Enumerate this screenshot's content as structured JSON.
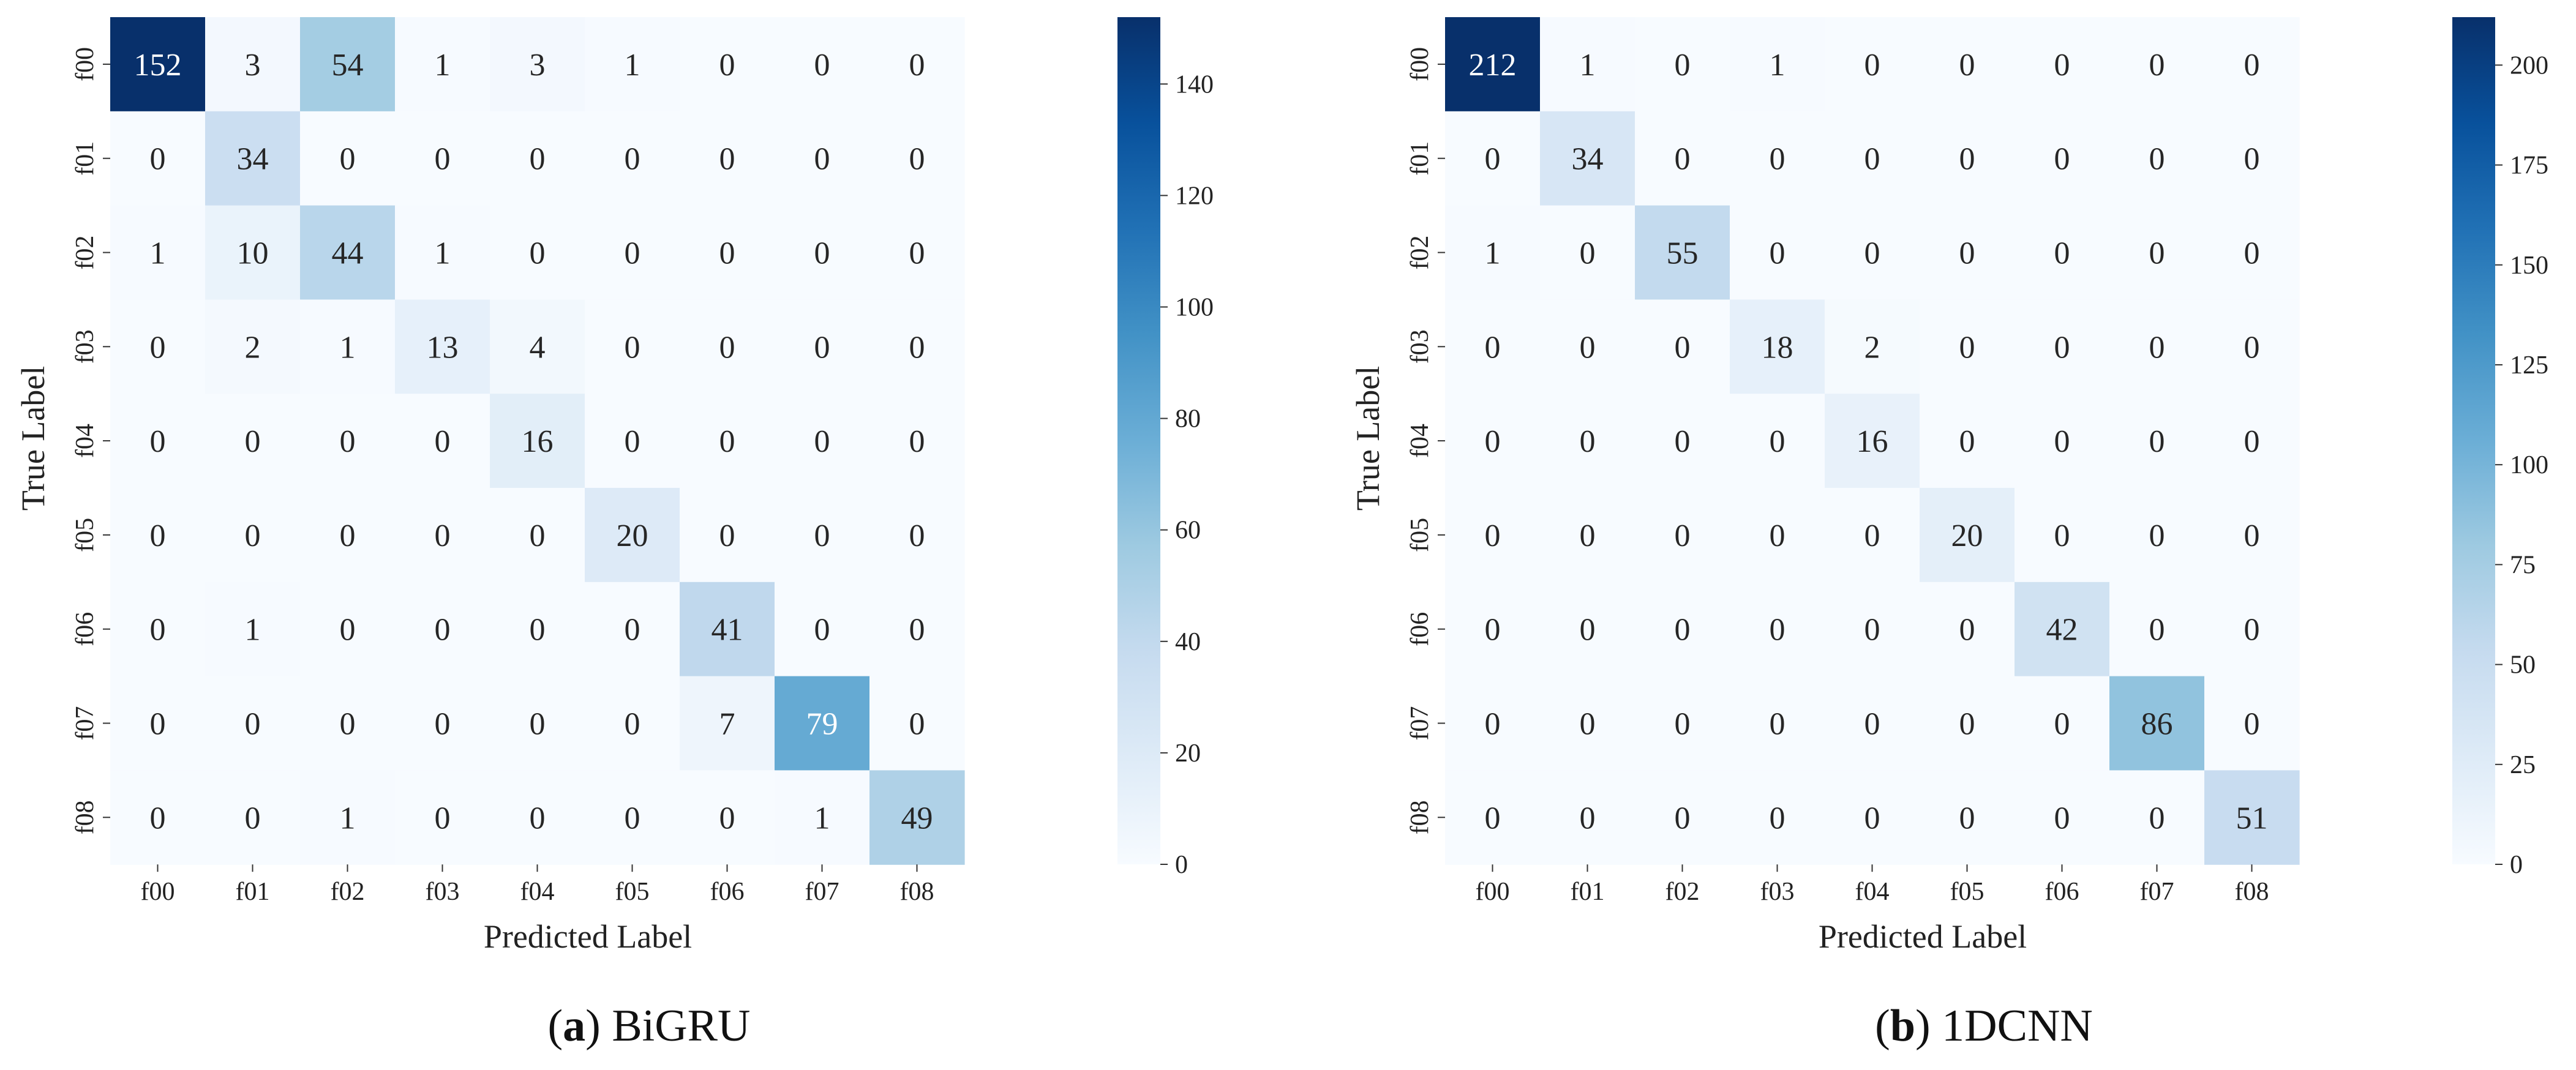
{
  "chart_data": [
    {
      "type": "heatmap",
      "caption_letter": "a",
      "caption_text": "BiGRU",
      "x_categories": [
        "f00",
        "f01",
        "f02",
        "f03",
        "f04",
        "f05",
        "f06",
        "f07",
        "f08"
      ],
      "y_categories": [
        "f00",
        "f01",
        "f02",
        "f03",
        "f04",
        "f05",
        "f06",
        "f07",
        "f08"
      ],
      "xlabel": "Predicted Label",
      "ylabel": "True Label",
      "values": [
        [
          152,
          3,
          54,
          1,
          3,
          1,
          0,
          0,
          0
        ],
        [
          0,
          34,
          0,
          0,
          0,
          0,
          0,
          0,
          0
        ],
        [
          1,
          10,
          44,
          1,
          0,
          0,
          0,
          0,
          0
        ],
        [
          0,
          2,
          1,
          13,
          4,
          0,
          0,
          0,
          0
        ],
        [
          0,
          0,
          0,
          0,
          16,
          0,
          0,
          0,
          0
        ],
        [
          0,
          0,
          0,
          0,
          0,
          20,
          0,
          0,
          0
        ],
        [
          0,
          1,
          0,
          0,
          0,
          0,
          41,
          0,
          0
        ],
        [
          0,
          0,
          0,
          0,
          0,
          0,
          7,
          79,
          0
        ],
        [
          0,
          0,
          1,
          0,
          0,
          0,
          0,
          1,
          49
        ]
      ],
      "colorbar": {
        "min": 0,
        "max": 152,
        "ticks": [
          0,
          20,
          40,
          60,
          80,
          100,
          120,
          140
        ]
      },
      "colormap": "Blues"
    },
    {
      "type": "heatmap",
      "caption_letter": "b",
      "caption_text": "1DCNN",
      "x_categories": [
        "f00",
        "f01",
        "f02",
        "f03",
        "f04",
        "f05",
        "f06",
        "f07",
        "f08"
      ],
      "y_categories": [
        "f00",
        "f01",
        "f02",
        "f03",
        "f04",
        "f05",
        "f06",
        "f07",
        "f08"
      ],
      "xlabel": "Predicted Label",
      "ylabel": "True Label",
      "values": [
        [
          212,
          1,
          0,
          1,
          0,
          0,
          0,
          0,
          0
        ],
        [
          0,
          34,
          0,
          0,
          0,
          0,
          0,
          0,
          0
        ],
        [
          1,
          0,
          55,
          0,
          0,
          0,
          0,
          0,
          0
        ],
        [
          0,
          0,
          0,
          18,
          2,
          0,
          0,
          0,
          0
        ],
        [
          0,
          0,
          0,
          0,
          16,
          0,
          0,
          0,
          0
        ],
        [
          0,
          0,
          0,
          0,
          0,
          20,
          0,
          0,
          0
        ],
        [
          0,
          0,
          0,
          0,
          0,
          0,
          42,
          0,
          0
        ],
        [
          0,
          0,
          0,
          0,
          0,
          0,
          0,
          86,
          0
        ],
        [
          0,
          0,
          0,
          0,
          0,
          0,
          0,
          0,
          51
        ]
      ],
      "colorbar": {
        "min": 0,
        "max": 212,
        "ticks": [
          0,
          25,
          50,
          75,
          100,
          125,
          150,
          175,
          200
        ]
      },
      "colormap": "Blues"
    }
  ]
}
